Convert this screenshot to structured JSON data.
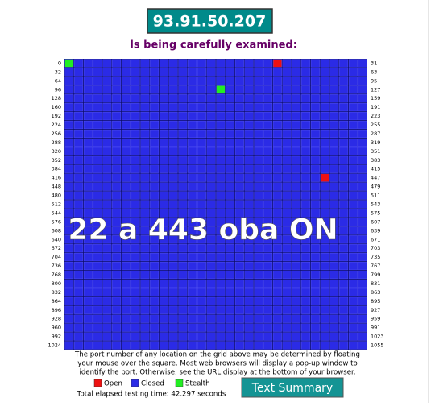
{
  "header": {
    "ip": "93.91.50.207",
    "subtitle": "Is being carefully examined:"
  },
  "grid": {
    "left_labels": [
      0,
      32,
      64,
      96,
      128,
      160,
      192,
      224,
      256,
      288,
      320,
      352,
      384,
      416,
      448,
      480,
      512,
      544,
      576,
      608,
      640,
      672,
      704,
      736,
      768,
      800,
      832,
      864,
      896,
      928,
      960,
      992,
      1024
    ],
    "right_labels": [
      31,
      63,
      95,
      127,
      159,
      191,
      223,
      255,
      287,
      319,
      351,
      383,
      415,
      447,
      479,
      511,
      543,
      575,
      607,
      639,
      671,
      703,
      735,
      767,
      799,
      831,
      863,
      895,
      927,
      959,
      991,
      1023,
      1055
    ],
    "open_ports": [
      22,
      443
    ],
    "stealth_ports": [
      0,
      112
    ],
    "overlay": "22 a 443 oba ON"
  },
  "footnote": [
    "The port number of any location on the grid above may be determined by floating",
    "your mouse over the square. Most web browsers will display a pop-up window to",
    "identify the port. Otherwise, see the URL display at the bottom of your browser."
  ],
  "legend": [
    {
      "label": "Open",
      "color": "#ee1111"
    },
    {
      "label": "Closed",
      "color": "#2b2be6"
    },
    {
      "label": "Stealth",
      "color": "#22ee22"
    }
  ],
  "elapsed": "Total elapsed testing time: 42.297 seconds",
  "button": "Text Summary"
}
